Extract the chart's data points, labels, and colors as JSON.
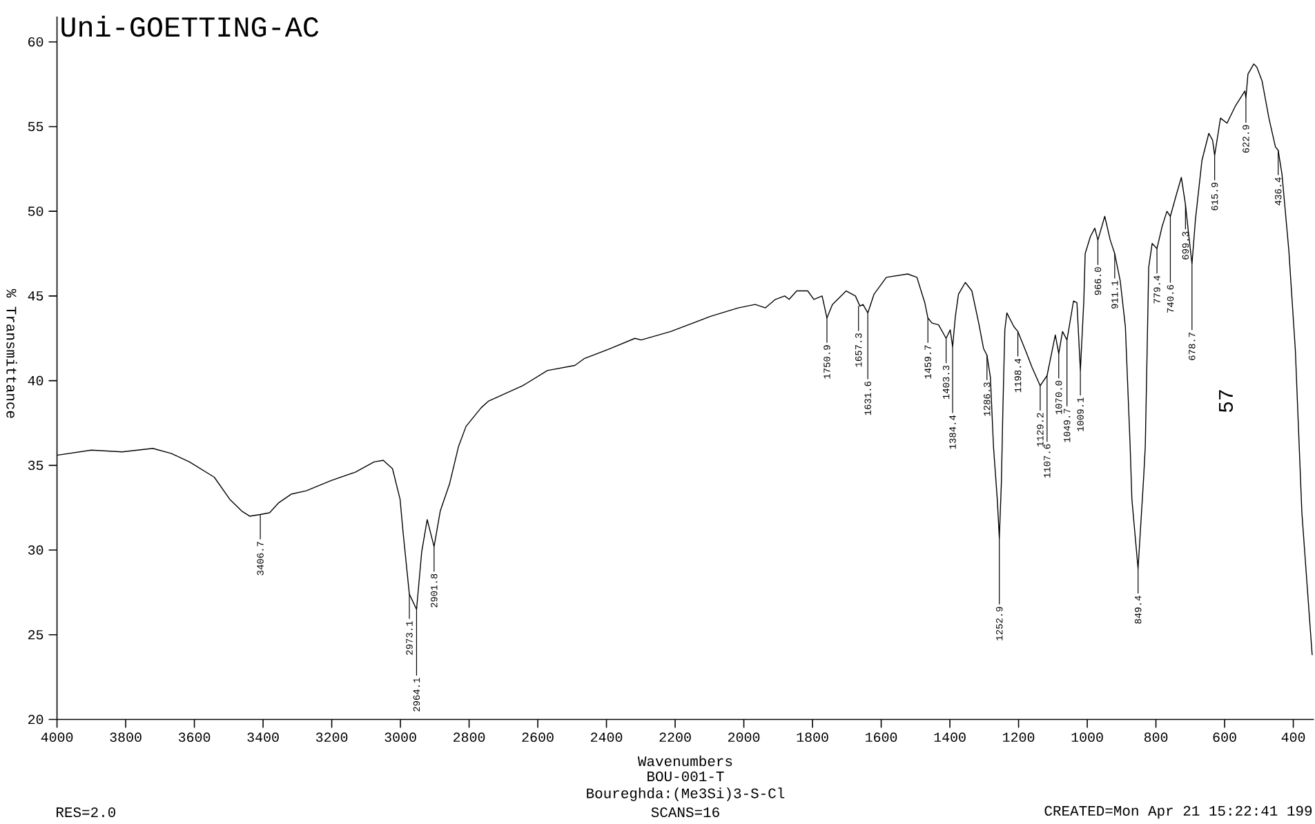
{
  "chart_data": {
    "type": "line",
    "title": "Uni-GOETTING-AC",
    "xlabel": "Wavenumbers",
    "ylabel": "% Transmittance",
    "color": "#000000",
    "xlim": [
      4000,
      340
    ],
    "ylim": [
      20,
      61.5
    ],
    "xticks": [
      4000,
      3800,
      3600,
      3400,
      3200,
      3000,
      2800,
      2600,
      2400,
      2200,
      2000,
      1800,
      1600,
      1400,
      1200,
      1000,
      800,
      600,
      400
    ],
    "yticks": [
      20,
      25,
      30,
      35,
      40,
      45,
      50,
      55,
      60
    ],
    "x": [
      4000,
      3900,
      3810,
      3721,
      3667,
      3614,
      3542,
      3497,
      3462,
      3439,
      3408,
      3381,
      3354,
      3318,
      3274,
      3202,
      3131,
      3077,
      3050,
      3023,
      3001,
      2992,
      2974,
      2953,
      2938,
      2922,
      2902,
      2884,
      2857,
      2831,
      2809,
      2765,
      2743,
      2644,
      2572,
      2492,
      2465,
      2388,
      2317,
      2299,
      2213,
      2097,
      2016,
      1967,
      1937,
      1908,
      1881,
      1868,
      1846,
      1814,
      1796,
      1772,
      1758,
      1742,
      1702,
      1675,
      1662,
      1653,
      1639,
      1621,
      1585,
      1523,
      1496,
      1473,
      1464,
      1452,
      1433,
      1411,
      1399,
      1392,
      1384,
      1375,
      1355,
      1336,
      1316,
      1302,
      1292,
      1282,
      1273,
      1262,
      1256,
      1250,
      1246,
      1240,
      1234,
      1214,
      1202,
      1180,
      1161,
      1137,
      1117,
      1093,
      1083,
      1072,
      1059,
      1040,
      1030,
      1020,
      1010,
      1006,
      991,
      978,
      969,
      949,
      933,
      920,
      904,
      889,
      875,
      870,
      852,
      836,
      831,
      821,
      811,
      797,
      782,
      768,
      758,
      743,
      726,
      714,
      705,
      695,
      685,
      666,
      646,
      635,
      629,
      612,
      593,
      569,
      541,
      538,
      532,
      515,
      506,
      491,
      471,
      452,
      444,
      433,
      413,
      394,
      375,
      345
    ],
    "values": [
      35.6,
      35.9,
      35.8,
      36.0,
      35.7,
      35.2,
      34.3,
      33.0,
      32.3,
      32.0,
      32.1,
      32.2,
      32.8,
      33.3,
      33.5,
      34.1,
      34.6,
      35.2,
      35.3,
      34.8,
      33.0,
      31.0,
      27.4,
      26.5,
      29.9,
      31.8,
      30.2,
      32.3,
      33.9,
      36.1,
      37.3,
      38.4,
      38.8,
      39.7,
      40.6,
      40.9,
      41.3,
      41.9,
      42.5,
      42.4,
      42.9,
      43.8,
      44.3,
      44.5,
      44.3,
      44.8,
      45.0,
      44.8,
      45.3,
      45.3,
      44.8,
      45.0,
      43.7,
      44.5,
      45.3,
      45.0,
      44.4,
      44.5,
      44.0,
      45.1,
      46.1,
      46.3,
      46.1,
      44.6,
      43.7,
      43.4,
      43.3,
      42.5,
      43.0,
      42.0,
      43.8,
      45.1,
      45.8,
      45.3,
      43.4,
      41.9,
      41.5,
      40.2,
      36.1,
      33.0,
      30.7,
      34.0,
      38.0,
      43.0,
      44.0,
      43.2,
      42.9,
      41.8,
      40.8,
      39.7,
      40.3,
      42.7,
      41.6,
      42.9,
      42.4,
      44.7,
      44.6,
      40.6,
      44.7,
      47.5,
      48.5,
      49.0,
      48.3,
      49.7,
      48.3,
      47.5,
      45.9,
      43.2,
      36.1,
      33.0,
      28.9,
      34.2,
      36.1,
      46.7,
      48.1,
      47.8,
      49.1,
      50.0,
      49.7,
      50.8,
      52.0,
      50.4,
      48.7,
      46.9,
      49.5,
      53.0,
      54.6,
      54.2,
      53.3,
      55.5,
      55.2,
      56.2,
      57.1,
      56.7,
      58.1,
      58.7,
      58.5,
      57.7,
      55.5,
      53.8,
      53.6,
      52.2,
      47.7,
      41.8,
      32.2,
      23.8
    ],
    "annotations": [
      "BOU-001-T",
      "Boureghda:(Me3Si)3-S-Cl",
      "SCANS=16",
      "RES=2.0",
      "CREATED=Mon Apr 21 15:22:41 199",
      "57",
      {
        "text": "3406.7",
        "x": 3408,
        "y": 32.1
      },
      {
        "text": "2973.1",
        "x": 2974,
        "y": 27.4
      },
      {
        "text": "2964.1",
        "x": 2953,
        "y": 26.5
      },
      {
        "text": "2901.8",
        "x": 2902,
        "y": 30.2
      },
      {
        "text": "1750.9",
        "x": 1758,
        "y": 43.7
      },
      {
        "text": "1657.3",
        "x": 1666,
        "y": 44.4
      },
      {
        "text": "1631.6",
        "x": 1639,
        "y": 44.0
      },
      {
        "text": "1459.7",
        "x": 1464,
        "y": 43.7
      },
      {
        "text": "1403.3",
        "x": 1411,
        "y": 42.5
      },
      {
        "text": "1384.4",
        "x": 1392,
        "y": 42.0
      },
      {
        "text": "1286.3",
        "x": 1292,
        "y": 41.5
      },
      {
        "text": "1252.9",
        "x": 1256,
        "y": 30.7
      },
      {
        "text": "1198.4",
        "x": 1202,
        "y": 42.9
      },
      {
        "text": "1129.2",
        "x": 1137,
        "y": 39.7
      },
      {
        "text": "1107.6",
        "x": 1117,
        "y": 40.3
      },
      {
        "text": "1070.0",
        "x": 1083,
        "y": 41.6
      },
      {
        "text": "1049.7",
        "x": 1059,
        "y": 42.4
      },
      {
        "text": "1009.1",
        "x": 1020,
        "y": 40.6
      },
      {
        "text": "966.0",
        "x": 969,
        "y": 48.3
      },
      {
        "text": "911.1",
        "x": 920,
        "y": 47.5
      },
      {
        "text": "849.4",
        "x": 852,
        "y": 28.9
      },
      {
        "text": "779.4",
        "x": 797,
        "y": 47.8
      },
      {
        "text": "740.6",
        "x": 758,
        "y": 49.7
      },
      {
        "text": "699.3",
        "x": 714,
        "y": 50.4
      },
      {
        "text": "678.7",
        "x": 695,
        "y": 46.9
      },
      {
        "text": "615.9",
        "x": 629,
        "y": 53.3
      },
      {
        "text": "622.9",
        "x": 538,
        "y": 56.7
      },
      {
        "text": "436.4",
        "x": 444,
        "y": 53.6
      }
    ]
  }
}
